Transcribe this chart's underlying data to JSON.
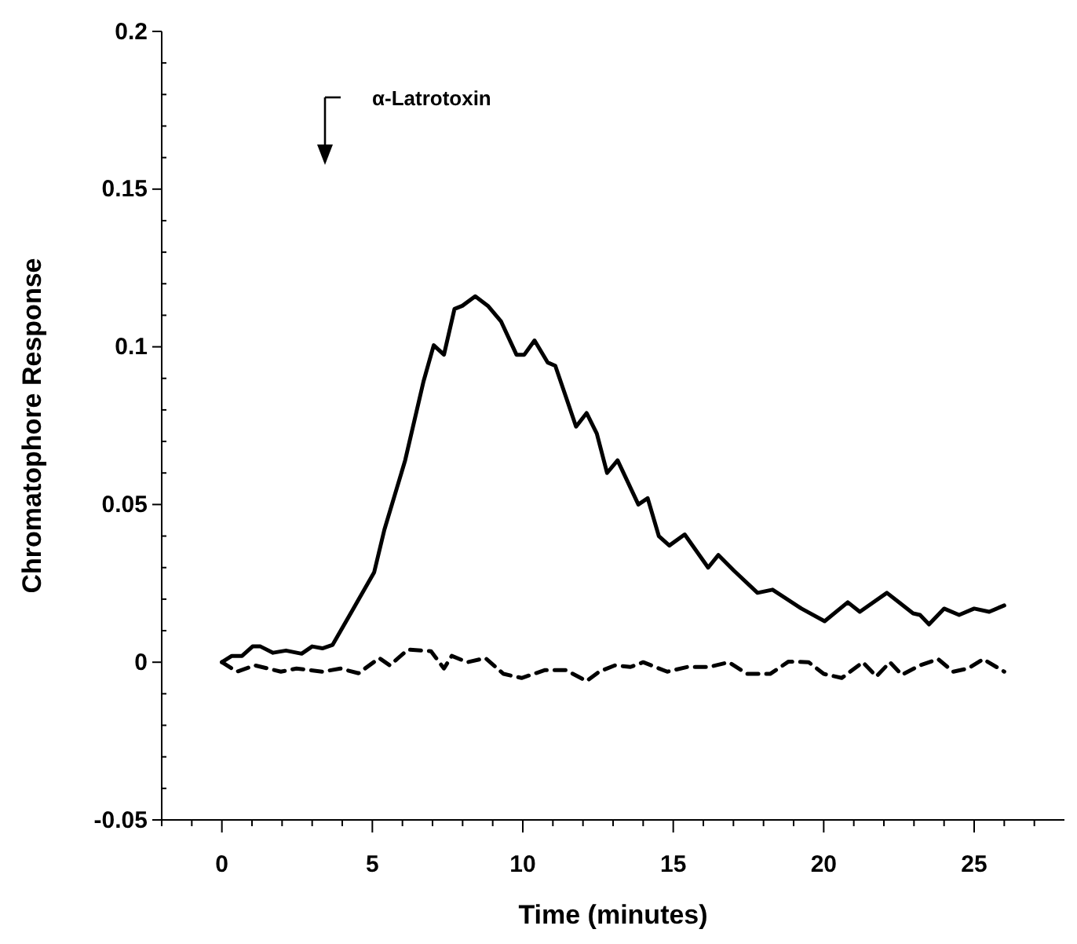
{
  "chart_data": {
    "type": "line",
    "xlabel": "Time (minutes)",
    "ylabel": "Chromatophore Response",
    "xlim": [
      -2,
      28
    ],
    "ylim": [
      -0.05,
      0.2
    ],
    "xticks": [
      {
        "value": -2,
        "label": null
      },
      {
        "value": -1,
        "label": null
      },
      0,
      {
        "value": 1,
        "label": null
      },
      {
        "value": 2,
        "label": null
      },
      {
        "value": 3,
        "label": null
      },
      {
        "value": 4,
        "label": null
      },
      5,
      {
        "value": 6,
        "label": null
      },
      {
        "value": 7,
        "label": null
      },
      {
        "value": 8,
        "label": null
      },
      {
        "value": 9,
        "label": null
      },
      10,
      {
        "value": 11,
        "label": null
      },
      {
        "value": 12,
        "label": null
      },
      {
        "value": 13,
        "label": null
      },
      {
        "value": 14,
        "label": null
      },
      15,
      {
        "value": 16,
        "label": null
      },
      {
        "value": 17,
        "label": null
      },
      {
        "value": 18,
        "label": null
      },
      {
        "value": 19,
        "label": null
      },
      20,
      {
        "value": 21,
        "label": null
      },
      {
        "value": 22,
        "label": null
      },
      {
        "value": 23,
        "label": null
      },
      {
        "value": 24,
        "label": null
      },
      25,
      {
        "value": 26,
        "label": null
      },
      {
        "value": 27,
        "label": null
      }
    ],
    "yticks": [
      -0.05,
      {
        "value": -0.04,
        "label": null
      },
      {
        "value": -0.03,
        "label": null
      },
      {
        "value": -0.02,
        "label": null
      },
      {
        "value": -0.01,
        "label": null
      },
      0,
      {
        "value": 0.01,
        "label": null
      },
      {
        "value": 0.02,
        "label": null
      },
      {
        "value": 0.03,
        "label": null
      },
      {
        "value": 0.04,
        "label": null
      },
      0.05,
      {
        "value": 0.06,
        "label": null
      },
      {
        "value": 0.07,
        "label": null
      },
      {
        "value": 0.08,
        "label": null
      },
      {
        "value": 0.09,
        "label": null
      },
      0.1,
      {
        "value": 0.11,
        "label": null
      },
      {
        "value": 0.12,
        "label": null
      },
      {
        "value": 0.13,
        "label": null
      },
      {
        "value": 0.14,
        "label": null
      },
      0.15,
      {
        "value": 0.16,
        "label": null
      },
      {
        "value": 0.17,
        "label": null
      },
      {
        "value": 0.18,
        "label": null
      },
      {
        "value": 0.19,
        "label": null
      },
      0.2
    ],
    "grid": false,
    "marker": "none",
    "annotations": [
      "α-Latrotoxin"
    ],
    "series": [
      {
        "color": "#000000",
        "line_style": "solid",
        "x": [
          0,
          0.33,
          0.67,
          1.02,
          1.28,
          1.7,
          2.13,
          2.65,
          3.0,
          3.34,
          3.68,
          4.37,
          5.06,
          5.4,
          6.09,
          6.7,
          7.04,
          7.38,
          7.73,
          7.99,
          8.42,
          8.84,
          9.28,
          9.79,
          10.05,
          10.39,
          10.83,
          11.08,
          11.77,
          12.12,
          12.46,
          12.8,
          13.15,
          13.84,
          14.15,
          14.52,
          14.87,
          15.38,
          16.16,
          16.5,
          17.02,
          17.8,
          18.3,
          19.26,
          20.03,
          20.8,
          21.2,
          22.1,
          22.97,
          23.2,
          23.5,
          24.0,
          24.5,
          25.0,
          25.5,
          26.0
        ],
        "values": [
          0,
          0.002,
          0.002,
          0.005,
          0.005,
          0.003,
          0.0037,
          0.0027,
          0.005,
          0.0044,
          0.0055,
          0.017,
          0.0285,
          0.042,
          0.064,
          0.089,
          0.1005,
          0.0975,
          0.112,
          0.113,
          0.116,
          0.113,
          0.108,
          0.0975,
          0.0975,
          0.102,
          0.095,
          0.094,
          0.0747,
          0.079,
          0.0725,
          0.06,
          0.064,
          0.05,
          0.052,
          0.04,
          0.037,
          0.0405,
          0.03,
          0.034,
          0.029,
          0.022,
          0.023,
          0.017,
          0.013,
          0.019,
          0.016,
          0.022,
          0.0155,
          0.015,
          0.012,
          0.017,
          0.015,
          0.017,
          0.016,
          0.018
        ]
      },
      {
        "color": "#000000",
        "line_style": "dashed",
        "x": [
          0,
          0.5,
          1.1,
          1.96,
          2.48,
          3.34,
          3.94,
          4.54,
          5.23,
          5.58,
          6.18,
          6.95,
          7.38,
          7.64,
          8.16,
          8.76,
          9.36,
          9.96,
          10.74,
          11.43,
          12.12,
          12.54,
          13.06,
          13.58,
          14.0,
          14.8,
          15.47,
          16.2,
          16.85,
          17.45,
          18.22,
          18.83,
          19.5,
          20.0,
          20.6,
          21.3,
          21.75,
          22.2,
          22.6,
          23.2,
          23.8,
          24.3,
          24.8,
          25.3,
          26.0
        ],
        "values": [
          0,
          -0.003,
          -0.001,
          -0.003,
          -0.002,
          -0.003,
          -0.002,
          -0.0035,
          0.0013,
          -0.001,
          0.004,
          0.0035,
          -0.002,
          0.002,
          0,
          0.0013,
          -0.0037,
          -0.005,
          -0.0025,
          -0.0025,
          -0.006,
          -0.003,
          -0.001,
          -0.0015,
          0,
          -0.003,
          -0.0015,
          -0.0015,
          0,
          -0.0037,
          -0.0037,
          0.0002,
          0,
          -0.0037,
          -0.005,
          0,
          -0.0045,
          0,
          -0.004,
          -0.001,
          0.001,
          -0.003,
          -0.002,
          0.001,
          -0.003
        ]
      }
    ]
  }
}
